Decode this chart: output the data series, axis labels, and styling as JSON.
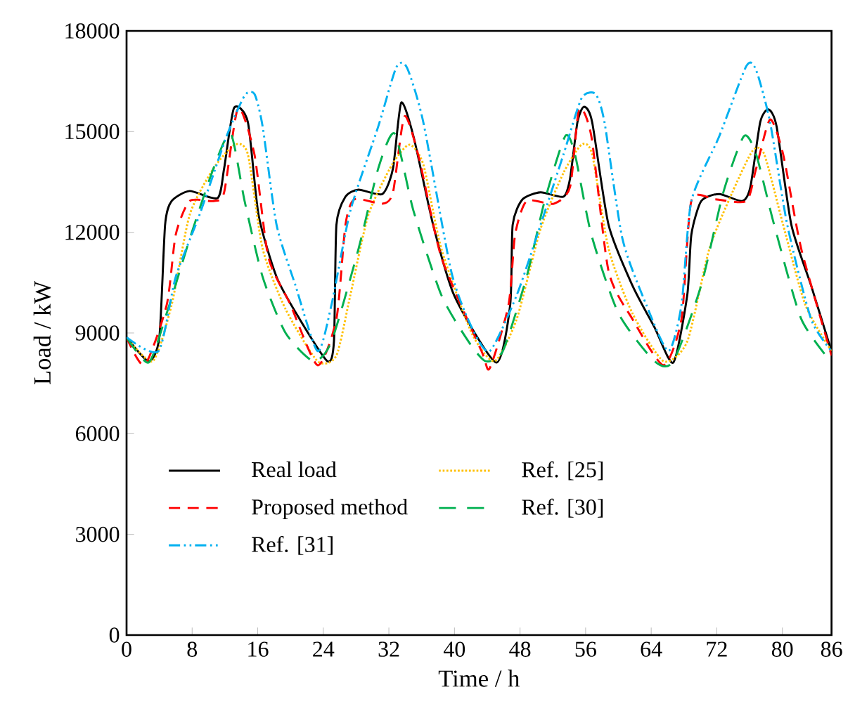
{
  "chart_data": {
    "type": "line",
    "xlabel": "Time / h",
    "ylabel": "Load / kW",
    "xlim": [
      0,
      86
    ],
    "ylim": [
      0,
      18000
    ],
    "xticks": [
      0,
      8,
      16,
      24,
      32,
      40,
      48,
      56,
      64,
      72,
      80,
      86
    ],
    "yticks": [
      0,
      3000,
      6000,
      9000,
      12000,
      15000,
      18000
    ],
    "grid": false,
    "legend": "bottom left",
    "marker": "none",
    "series": [
      {
        "name": "Real load",
        "color": "#000000",
        "line_style": "solid",
        "x": [
          0,
          2.7,
          4.0,
          4.7,
          5.5,
          7.7,
          11.1,
          11.9,
          13.1,
          14.8,
          16.1,
          18.3,
          21.1,
          24.5,
          25.3,
          25.6,
          26.7,
          28.3,
          31.2,
          32.5,
          33.5,
          35.0,
          37.4,
          40,
          45.1,
          46.8,
          47.1,
          48.3,
          50.5,
          53.3,
          54.1,
          55.0,
          55.8,
          56.8,
          58.8,
          61.7,
          64.4,
          66.7,
          68.4,
          68.9,
          70.1,
          72.3,
          75.1,
          76.1,
          77.3,
          78.3,
          79.3,
          81.1,
          83.5,
          86
        ],
        "values": [
          8870,
          8160,
          8870,
          12220,
          12930,
          13230,
          13020,
          13900,
          15700,
          15280,
          12520,
          10670,
          9420,
          8160,
          8750,
          12220,
          13060,
          13270,
          13140,
          13900,
          15860,
          14860,
          12220,
          10100,
          8120,
          9840,
          12220,
          12980,
          13190,
          13060,
          13600,
          15280,
          15740,
          15280,
          12220,
          10420,
          9170,
          8120,
          10130,
          11930,
          12930,
          13140,
          12930,
          13350,
          15280,
          15660,
          15150,
          12220,
          10420,
          8450
        ]
      },
      {
        "name": "Ref. [25]",
        "color": "#ffc000",
        "line_style": "dotted",
        "x": [
          0,
          3.2,
          5.5,
          7.7,
          10.6,
          13.2,
          14.8,
          16.6,
          19.4,
          23.3,
          25.6,
          27.3,
          29.5,
          32.4,
          34.5,
          36.2,
          38.4,
          42.1,
          44.9,
          47.6,
          50.5,
          53.3,
          55.5,
          56.8,
          58.8,
          61.7,
          65.5,
          68.4,
          71.1,
          73.9,
          76.4,
          77.8,
          80.1,
          82.8,
          86
        ],
        "values": [
          8870,
          8160,
          9840,
          12520,
          13900,
          14610,
          14320,
          11510,
          9710,
          8160,
          8330,
          10130,
          12520,
          14020,
          14610,
          14020,
          11510,
          9000,
          8160,
          9420,
          12100,
          13770,
          14610,
          14320,
          11510,
          9590,
          8160,
          8750,
          11510,
          13190,
          14440,
          14320,
          12220,
          9840,
          8460
        ]
      },
      {
        "name": "Proposed method",
        "color": "#ff0000",
        "line_style": "dashed",
        "x": [
          0,
          2.2,
          4.9,
          6.0,
          7.7,
          10.6,
          11.9,
          13.6,
          15.6,
          17.3,
          20.0,
          23.3,
          25.6,
          26.7,
          27.8,
          31.2,
          32.5,
          33.9,
          35.7,
          38.4,
          43.3,
          44.3,
          46.6,
          47.4,
          48.8,
          52.1,
          54.1,
          55.2,
          56.7,
          58.8,
          61.7,
          65.5,
          67.7,
          68.9,
          71.8,
          75.6,
          76.8,
          78.5,
          80.1,
          82.3,
          86
        ],
        "values": [
          8870,
          8040,
          9840,
          11930,
          12930,
          12930,
          13190,
          15700,
          14320,
          11260,
          9840,
          8040,
          9420,
          12220,
          12980,
          12850,
          13190,
          15450,
          14190,
          11260,
          8460,
          7950,
          9840,
          11930,
          12930,
          12850,
          13350,
          15660,
          14860,
          10840,
          9420,
          8040,
          9420,
          12930,
          12980,
          12930,
          13900,
          15360,
          14320,
          11510,
          8330
        ]
      },
      {
        "name": "Ref. [30]",
        "color": "#00b050",
        "line_style": "loosely dashed",
        "x": [
          0,
          2.7,
          4.9,
          7.7,
          10.6,
          12.7,
          14.4,
          16.6,
          19.4,
          22.8,
          25.0,
          28.3,
          30.7,
          32.7,
          35.0,
          38.4,
          41.7,
          43.8,
          45.9,
          48.8,
          51.0,
          53.5,
          54.7,
          56.7,
          60.0,
          64.4,
          66.7,
          70.1,
          72.8,
          75.3,
          76.8,
          79.0,
          82.3,
          86
        ],
        "values": [
          8870,
          8120,
          9590,
          11800,
          13900,
          14940,
          12930,
          10670,
          9000,
          8160,
          8750,
          11510,
          13900,
          14940,
          12640,
          10130,
          8750,
          8160,
          8460,
          10670,
          12930,
          14860,
          14320,
          11930,
          9590,
          8160,
          8160,
          10420,
          13190,
          14860,
          14320,
          12220,
          9420,
          8120
        ]
      },
      {
        "name": "Ref. [31]",
        "color": "#00b0f0",
        "line_style": "dashdotdotted",
        "x": [
          0,
          3.9,
          6.0,
          8.9,
          12.2,
          14.4,
          15.6,
          16.6,
          18.3,
          20.6,
          23.3,
          25.0,
          27.3,
          30.7,
          32.9,
          34.2,
          36.2,
          39.6,
          42.1,
          44.3,
          47.6,
          50.5,
          53.3,
          55.5,
          57.2,
          58.3,
          60.5,
          63.4,
          66.1,
          67.7,
          68.9,
          72.3,
          75.6,
          76.8,
          78.5,
          80.6,
          83.5,
          86
        ],
        "values": [
          8870,
          8460,
          10670,
          12520,
          14860,
          16070,
          16120,
          15150,
          12220,
          10420,
          8460,
          9840,
          12640,
          15150,
          16910,
          16910,
          15280,
          10840,
          9170,
          8460,
          10130,
          12220,
          14320,
          15990,
          16120,
          15280,
          11800,
          9840,
          8460,
          9840,
          12930,
          14860,
          16950,
          16830,
          15280,
          12220,
          9420,
          8460
        ]
      }
    ]
  }
}
